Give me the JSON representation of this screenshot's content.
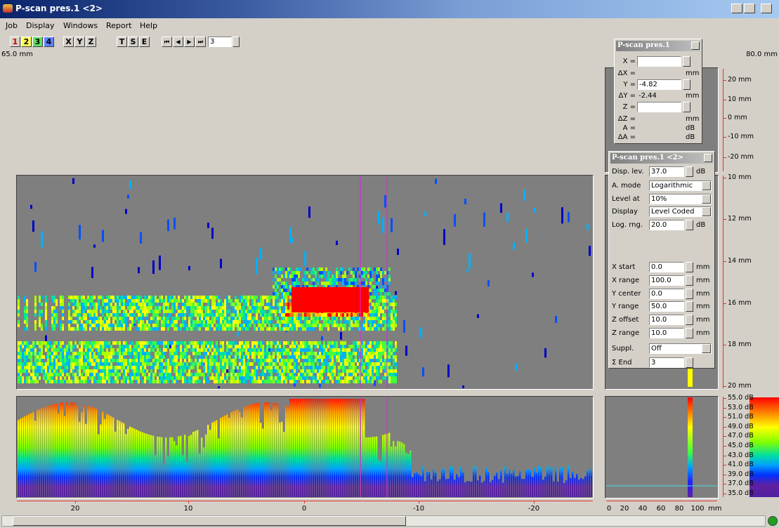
{
  "window": {
    "title": "P-scan pres.1 <2>"
  },
  "menu": [
    "Job",
    "Display",
    "Windows",
    "Report",
    "Help"
  ],
  "toolbar": {
    "channels": [
      "1",
      "2",
      "3",
      "4"
    ],
    "axes": [
      "X",
      "Y",
      "Z"
    ],
    "views": [
      "T",
      "S",
      "E"
    ],
    "step": "3"
  },
  "range": {
    "left": "65.0 mm",
    "right": "80.0 mm"
  },
  "cursor_dialog": {
    "title": "P-scan pres.1",
    "rows": [
      {
        "label": "X ="
      },
      {
        "label": "ΔX =",
        "unit": "mm"
      },
      {
        "label": "Y =",
        "value": "-4.82"
      },
      {
        "label": "ΔY =",
        "value": "-2.44",
        "unit": "mm"
      },
      {
        "label": "Z ="
      },
      {
        "label": "ΔZ =",
        "unit": "mm"
      },
      {
        "label": "A =",
        "unit": "dB"
      },
      {
        "label": "ΔA =",
        "unit": "dB"
      }
    ]
  },
  "settings_dialog": {
    "title": "P-scan pres.1 <2>",
    "rows": [
      {
        "label": "Disp. lev.",
        "value": "37.0",
        "unit": "dB"
      },
      {
        "label": "A. mode",
        "value": "Logarithmic"
      },
      {
        "label": "Level at",
        "value": "10%"
      },
      {
        "label": "Display",
        "value": "Level Coded"
      },
      {
        "label": "Log. rng.",
        "value": "20.0",
        "unit": "dB"
      },
      {
        "label": "X start",
        "value": "0.0",
        "unit": "mm"
      },
      {
        "label": "X range",
        "value": "100.0",
        "unit": "mm"
      },
      {
        "label": "Y center",
        "value": "0.0",
        "unit": "mm"
      },
      {
        "label": "Y range",
        "value": "50.0",
        "unit": "mm"
      },
      {
        "label": "Z offset",
        "value": "10.0",
        "unit": "mm"
      },
      {
        "label": "Z range",
        "value": "10.0",
        "unit": "mm"
      },
      {
        "label": "Suppl.",
        "value": "Off"
      },
      {
        "label": "Σ End",
        "value": "3"
      }
    ]
  },
  "axes": {
    "top_right": [
      "20 mm",
      "10 mm",
      "0 mm",
      "-10 mm",
      "-20 mm"
    ],
    "mid_right": [
      "10 mm",
      "12 mm",
      "14 mm",
      "16 mm",
      "18 mm",
      "20 mm"
    ],
    "db": [
      "55.0 dB",
      "53.0 dB",
      "51.0 dB",
      "49.0 dB",
      "47.0 dB",
      "45.0 dB",
      "43.0 dB",
      "41.0 dB",
      "39.0 dB",
      "37.0 dB",
      "35.0 dB"
    ],
    "bottom": [
      "20",
      "10",
      "0",
      "-10",
      "-20"
    ],
    "bottom_small": [
      "0",
      "20",
      "40",
      "60",
      "80",
      "100"
    ],
    "bottom_small_unit": "mm"
  }
}
